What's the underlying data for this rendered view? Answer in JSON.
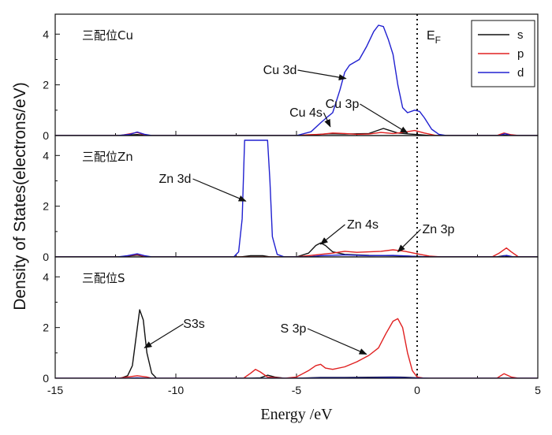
{
  "chart_data": {
    "type": "line",
    "title": "",
    "xlabel": "Energy /eV",
    "ylabel": "Density of States(electrons/eV)",
    "xlim": [
      -15,
      5
    ],
    "ylim": [
      0,
      4.6
    ],
    "x_ticks": [
      -15,
      -10,
      -5,
      0,
      5
    ],
    "y_ticks": [
      0,
      2,
      4
    ],
    "fermi_label_main": "E",
    "fermi_label_sub": "F",
    "legend": {
      "position": "top-right",
      "entries": [
        {
          "label": "s",
          "color": "#111111"
        },
        {
          "label": "p",
          "color": "#e02020"
        },
        {
          "label": "d",
          "color": "#2020d0"
        }
      ]
    },
    "panels": [
      {
        "label": "三配位Cu",
        "series": [
          {
            "name": "s",
            "color": "#111111",
            "points": [
              [
                -15,
                0
              ],
              [
                -12.3,
                0
              ],
              [
                -11.6,
                0.04
              ],
              [
                -11.2,
                0
              ],
              [
                -5,
                0
              ],
              [
                -4.3,
                0.03
              ],
              [
                -3.6,
                0.07
              ],
              [
                -3,
                0.06
              ],
              [
                -2,
                0.08
              ],
              [
                -1.4,
                0.28
              ],
              [
                -1.2,
                0.22
              ],
              [
                -0.8,
                0.1
              ],
              [
                -0.3,
                0.06
              ],
              [
                0,
                0.04
              ],
              [
                0.5,
                0
              ],
              [
                3.4,
                0
              ],
              [
                3.7,
                0.02
              ],
              [
                4,
                0
              ],
              [
                5,
                0
              ]
            ]
          },
          {
            "name": "p",
            "color": "#e02020",
            "points": [
              [
                -15,
                0
              ],
              [
                -12.3,
                0
              ],
              [
                -11.6,
                0.12
              ],
              [
                -11.2,
                0
              ],
              [
                -5,
                0
              ],
              [
                -4.5,
                0.03
              ],
              [
                -4,
                0.05
              ],
              [
                -3.5,
                0.1
              ],
              [
                -3,
                0.08
              ],
              [
                -2.5,
                0.05
              ],
              [
                -2,
                0.06
              ],
              [
                -1.5,
                0.12
              ],
              [
                -1,
                0.08
              ],
              [
                -0.6,
                0.12
              ],
              [
                -0.1,
                0.2
              ],
              [
                0.3,
                0.1
              ],
              [
                0.8,
                0
              ],
              [
                3.3,
                0
              ],
              [
                3.6,
                0.1
              ],
              [
                3.9,
                0.03
              ],
              [
                4.2,
                0
              ],
              [
                5,
                0
              ]
            ]
          },
          {
            "name": "d",
            "color": "#2020d0",
            "points": [
              [
                -15,
                0
              ],
              [
                -12.4,
                0
              ],
              [
                -11.9,
                0.05
              ],
              [
                -11.6,
                0.14
              ],
              [
                -11.3,
                0.05
              ],
              [
                -11,
                0
              ],
              [
                -5,
                0
              ],
              [
                -4.4,
                0.15
              ],
              [
                -4,
                0.5
              ],
              [
                -3.7,
                0.75
              ],
              [
                -3.5,
                0.9
              ],
              [
                -3.2,
                1.8
              ],
              [
                -3,
                2.5
              ],
              [
                -2.8,
                2.78
              ],
              [
                -2.4,
                3.0
              ],
              [
                -2.1,
                3.5
              ],
              [
                -1.8,
                4.1
              ],
              [
                -1.6,
                4.35
              ],
              [
                -1.4,
                4.3
              ],
              [
                -1.2,
                3.8
              ],
              [
                -1,
                3.2
              ],
              [
                -0.8,
                2.0
              ],
              [
                -0.6,
                1.1
              ],
              [
                -0.4,
                0.9
              ],
              [
                -0.1,
                1.0
              ],
              [
                0.1,
                0.95
              ],
              [
                0.3,
                0.7
              ],
              [
                0.6,
                0.25
              ],
              [
                0.9,
                0.05
              ],
              [
                1.2,
                0
              ],
              [
                3.4,
                0
              ],
              [
                3.65,
                0.07
              ],
              [
                3.9,
                0
              ],
              [
                5,
                0
              ]
            ]
          }
        ],
        "annotations": [
          {
            "text": "Cu 3d",
            "target_x": -2.95,
            "target_y": 2.25
          },
          {
            "text": "Cu 4s",
            "target_x": -3.6,
            "target_y": 0.35
          },
          {
            "text": "Cu 3p",
            "target_x": -0.4,
            "target_y": 0.1
          }
        ]
      },
      {
        "label": "三配位Zn",
        "series": [
          {
            "name": "s",
            "color": "#111111",
            "points": [
              [
                -15,
                0
              ],
              [
                -12.3,
                0
              ],
              [
                -11.6,
                0.07
              ],
              [
                -11.2,
                0
              ],
              [
                -7.3,
                0
              ],
              [
                -6.9,
                0.05
              ],
              [
                -6.4,
                0.05
              ],
              [
                -6.1,
                0
              ],
              [
                -5,
                0
              ],
              [
                -4.5,
                0.15
              ],
              [
                -4.2,
                0.45
              ],
              [
                -4,
                0.55
              ],
              [
                -3.8,
                0.45
              ],
              [
                -3.5,
                0.2
              ],
              [
                -3,
                0.1
              ],
              [
                -2,
                0.06
              ],
              [
                -1,
                0.05
              ],
              [
                0,
                0.02
              ],
              [
                0.5,
                0
              ],
              [
                3.3,
                0
              ],
              [
                3.6,
                0.05
              ],
              [
                3.9,
                0
              ],
              [
                5,
                0
              ]
            ]
          },
          {
            "name": "p",
            "color": "#e02020",
            "points": [
              [
                -15,
                0
              ],
              [
                -12.3,
                0
              ],
              [
                -11.6,
                0.1
              ],
              [
                -11.2,
                0
              ],
              [
                -5,
                0
              ],
              [
                -4.5,
                0.05
              ],
              [
                -4,
                0.1
              ],
              [
                -3.5,
                0.15
              ],
              [
                -3,
                0.22
              ],
              [
                -2.5,
                0.18
              ],
              [
                -2,
                0.2
              ],
              [
                -1.5,
                0.22
              ],
              [
                -1,
                0.28
              ],
              [
                -0.5,
                0.22
              ],
              [
                0,
                0.12
              ],
              [
                0.5,
                0.03
              ],
              [
                1,
                0
              ],
              [
                3.1,
                0
              ],
              [
                3.4,
                0.15
              ],
              [
                3.7,
                0.35
              ],
              [
                3.9,
                0.2
              ],
              [
                4.2,
                0
              ],
              [
                5,
                0
              ]
            ]
          },
          {
            "name": "d",
            "color": "#2020d0",
            "points": [
              [
                -15,
                0
              ],
              [
                -12.4,
                0
              ],
              [
                -12,
                0.05
              ],
              [
                -11.6,
                0.12
              ],
              [
                -11.3,
                0.05
              ],
              [
                -11,
                0
              ],
              [
                -7.6,
                0
              ],
              [
                -7.4,
                0.2
              ],
              [
                -7.25,
                1.5
              ],
              [
                -7.15,
                4.6
              ],
              [
                -6.65,
                4.6
              ],
              [
                -6.55,
                4.6
              ],
              [
                -6.2,
                4.6
              ],
              [
                -6.1,
                3.0
              ],
              [
                -6.0,
                0.8
              ],
              [
                -5.8,
                0.1
              ],
              [
                -5.5,
                0
              ],
              [
                -4.5,
                0
              ],
              [
                -4,
                0.05
              ],
              [
                -3,
                0.08
              ],
              [
                -2,
                0.05
              ],
              [
                -1,
                0.06
              ],
              [
                0,
                0.02
              ],
              [
                0.5,
                0
              ],
              [
                3.4,
                0
              ],
              [
                3.7,
                0.06
              ],
              [
                4,
                0
              ],
              [
                5,
                0
              ]
            ]
          }
        ],
        "annotations": [
          {
            "text": "Zn 3d",
            "target_x": -7.1,
            "target_y": 2.2
          },
          {
            "text": "Zn 4s",
            "target_x": -4.0,
            "target_y": 0.5
          },
          {
            "text": "Zn 3p",
            "target_x": -0.8,
            "target_y": 0.2
          }
        ]
      },
      {
        "label": "三配位S",
        "series": [
          {
            "name": "s",
            "color": "#111111",
            "points": [
              [
                -15,
                0
              ],
              [
                -12.3,
                0
              ],
              [
                -12,
                0.1
              ],
              [
                -11.8,
                0.5
              ],
              [
                -11.65,
                1.6
              ],
              [
                -11.5,
                2.7
              ],
              [
                -11.35,
                2.3
              ],
              [
                -11.2,
                1.0
              ],
              [
                -11.0,
                0.2
              ],
              [
                -10.8,
                0
              ],
              [
                -7,
                0
              ],
              [
                -6.5,
                0.02
              ],
              [
                -6.2,
                0.12
              ],
              [
                -5.9,
                0.05
              ],
              [
                -5.5,
                0
              ],
              [
                -5,
                0
              ],
              [
                -4,
                0.03
              ],
              [
                -3,
                0.03
              ],
              [
                -2,
                0.04
              ],
              [
                -1,
                0.05
              ],
              [
                -0.5,
                0.04
              ],
              [
                0,
                0.02
              ],
              [
                0.5,
                0
              ],
              [
                5,
                0
              ]
            ]
          },
          {
            "name": "p",
            "color": "#e02020",
            "points": [
              [
                -15,
                0
              ],
              [
                -12.4,
                0
              ],
              [
                -12,
                0.05
              ],
              [
                -11.6,
                0.1
              ],
              [
                -11.2,
                0.05
              ],
              [
                -11,
                0
              ],
              [
                -7.2,
                0
              ],
              [
                -6.9,
                0.2
              ],
              [
                -6.7,
                0.35
              ],
              [
                -6.5,
                0.25
              ],
              [
                -6.2,
                0.05
              ],
              [
                -5.5,
                0
              ],
              [
                -5,
                0.05
              ],
              [
                -4.5,
                0.3
              ],
              [
                -4.2,
                0.5
              ],
              [
                -4,
                0.55
              ],
              [
                -3.8,
                0.4
              ],
              [
                -3.5,
                0.35
              ],
              [
                -3,
                0.45
              ],
              [
                -2.5,
                0.65
              ],
              [
                -2,
                0.9
              ],
              [
                -1.6,
                1.2
              ],
              [
                -1.3,
                1.75
              ],
              [
                -1.0,
                2.25
              ],
              [
                -0.8,
                2.35
              ],
              [
                -0.6,
                2.0
              ],
              [
                -0.4,
                1.0
              ],
              [
                -0.2,
                0.3
              ],
              [
                0,
                0.05
              ],
              [
                0.3,
                0
              ],
              [
                3.3,
                0
              ],
              [
                3.6,
                0.18
              ],
              [
                3.9,
                0.05
              ],
              [
                4.2,
                0
              ],
              [
                5,
                0
              ]
            ]
          },
          {
            "name": "d",
            "color": "#2020d0",
            "points": [
              [
                -15,
                0
              ],
              [
                -12,
                0
              ],
              [
                -11.6,
                0.02
              ],
              [
                -11.2,
                0
              ],
              [
                -5,
                0
              ],
              [
                -4,
                0.02
              ],
              [
                -2,
                0.02
              ],
              [
                -1,
                0.03
              ],
              [
                0,
                0.01
              ],
              [
                0.5,
                0
              ],
              [
                5,
                0
              ]
            ]
          }
        ],
        "annotations": [
          {
            "text": "S3s",
            "target_x": -11.3,
            "target_y": 1.2
          },
          {
            "text": "S 3p",
            "target_x": -2.1,
            "target_y": 0.95
          }
        ]
      }
    ]
  }
}
